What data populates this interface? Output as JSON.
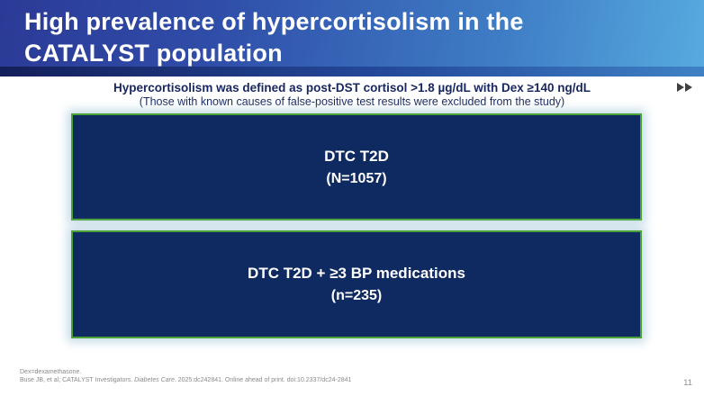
{
  "header": {
    "title": "High prevalence of hypercortisolism in the CATALYST population"
  },
  "definition": {
    "line1": "Hypercortisolism was defined as post-DST cortisol >1.8 µg/dL with Dex ≥140 ng/dL",
    "line2": "(Those with known causes of false-positive test results were excluded from the study)"
  },
  "boxes": [
    {
      "label": "DTC T2D",
      "count": "(N=1057)"
    },
    {
      "label": "DTC T2D + ≥3 BP medications",
      "count": "(n=235)"
    }
  ],
  "footer": {
    "abbrev": "Dex=dexamethasone.",
    "citation_pre": "Buse JB, et al; CATALYST Investigators. ",
    "citation_journal": "Diabetes Care",
    "citation_post": ". 2025:dc242841. Online ahead of print. doi:10.2337/dc24-2841",
    "page_number": "11"
  },
  "icons": {
    "fast_forward": "fast-forward"
  },
  "colors": {
    "header_gradient_left": "#2b3a96",
    "header_gradient_right": "#57aadf",
    "header_strip_left": "#141f5a",
    "box_fill": "#0f2a60",
    "box_border_green": "#4aa237",
    "definition_text": "#17265e",
    "box_glow": "#bad5e2"
  }
}
